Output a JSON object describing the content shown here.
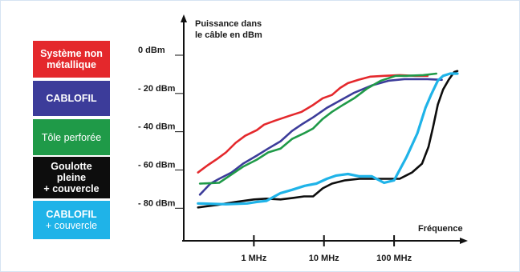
{
  "chart_data": {
    "type": "line",
    "title": "",
    "ylabel_line1": "Puissance dans",
    "ylabel_line2": "le câble en dBm",
    "xlabel": "Fréquence",
    "y_ticks": [
      {
        "value": 0,
        "label": "0 dBm"
      },
      {
        "value": -20,
        "label": "- 20 dBm"
      },
      {
        "value": -40,
        "label": "- 40 dBm"
      },
      {
        "value": -60,
        "label": "- 60 dBm"
      },
      {
        "value": -80,
        "label": "- 80 dBm"
      }
    ],
    "x_ticks": [
      {
        "value": 1,
        "label": "1 MHz"
      },
      {
        "value": 10,
        "label": "10 MHz"
      },
      {
        "value": 100,
        "label": "100 MHz"
      }
    ],
    "x_scale": "log",
    "xlim_mhz": [
      0.1,
      800
    ],
    "ylim": [
      -92,
      0
    ],
    "legend_placement": "left",
    "series": [
      {
        "name": "Système non métallique",
        "color": "#e4282c",
        "points": [
          [
            0.16,
            -61.3
          ],
          [
            0.22,
            -57.5
          ],
          [
            0.3,
            -54.2
          ],
          [
            0.4,
            -50.8
          ],
          [
            0.55,
            -45.8
          ],
          [
            0.75,
            -42.1
          ],
          [
            1.1,
            -39.2
          ],
          [
            1.4,
            -36.3
          ],
          [
            2,
            -34.2
          ],
          [
            3.2,
            -31.7
          ],
          [
            4.8,
            -29.6
          ],
          [
            6.8,
            -26.3
          ],
          [
            9.6,
            -22.5
          ],
          [
            13,
            -20.8
          ],
          [
            17,
            -17.1
          ],
          [
            22,
            -14.6
          ],
          [
            31,
            -12.9
          ],
          [
            46,
            -11.2
          ],
          [
            72,
            -10.8
          ],
          [
            120,
            -10.4
          ],
          [
            200,
            -10.8
          ],
          [
            300,
            -10.8
          ]
        ]
      },
      {
        "name": "CABLOFIL",
        "color": "#3c3c9a",
        "points": [
          [
            0.17,
            -72.9
          ],
          [
            0.24,
            -67.1
          ],
          [
            0.32,
            -64.6
          ],
          [
            0.48,
            -61.3
          ],
          [
            0.7,
            -56.7
          ],
          [
            1.1,
            -52.5
          ],
          [
            1.6,
            -48.8
          ],
          [
            2.4,
            -45
          ],
          [
            3.5,
            -39.6
          ],
          [
            5,
            -35.8
          ],
          [
            7,
            -32.5
          ],
          [
            11,
            -27.5
          ],
          [
            16,
            -24.2
          ],
          [
            27,
            -19.6
          ],
          [
            48,
            -15.8
          ],
          [
            85,
            -13.3
          ],
          [
            140,
            -12.5
          ],
          [
            300,
            -12.5
          ],
          [
            480,
            -12.9
          ]
        ]
      },
      {
        "name": "Tôle perforée",
        "color": "#1f9a48",
        "points": [
          [
            0.17,
            -67.1
          ],
          [
            0.32,
            -66.7
          ],
          [
            0.7,
            -58.3
          ],
          [
            1.1,
            -54.6
          ],
          [
            1.6,
            -50.8
          ],
          [
            2.4,
            -48.8
          ],
          [
            3.5,
            -43.8
          ],
          [
            5.2,
            -40.8
          ],
          [
            7,
            -38.3
          ],
          [
            9.6,
            -33.3
          ],
          [
            13,
            -29.6
          ],
          [
            19,
            -25.8
          ],
          [
            27,
            -22.5
          ],
          [
            41,
            -17.5
          ],
          [
            65,
            -13.3
          ],
          [
            105,
            -10.8
          ],
          [
            150,
            -10.8
          ],
          [
            260,
            -10.4
          ],
          [
            400,
            -9.6
          ]
        ]
      },
      {
        "name": "Goulotte pleine + couvercle",
        "color": "#0d0d0d",
        "points": [
          [
            0.16,
            -79.6
          ],
          [
            0.3,
            -78.3
          ],
          [
            0.55,
            -76.7
          ],
          [
            1,
            -75.4
          ],
          [
            1.5,
            -75
          ],
          [
            2.4,
            -75.4
          ],
          [
            3.6,
            -74.6
          ],
          [
            5.2,
            -73.8
          ],
          [
            7,
            -73.8
          ],
          [
            9.6,
            -69.6
          ],
          [
            13,
            -67.1
          ],
          [
            20,
            -65.4
          ],
          [
            32,
            -64.6
          ],
          [
            60,
            -64.6
          ],
          [
            120,
            -64.6
          ],
          [
            180,
            -61.3
          ],
          [
            250,
            -56.7
          ],
          [
            310,
            -47.9
          ],
          [
            360,
            -37.5
          ],
          [
            420,
            -25.8
          ],
          [
            500,
            -17.9
          ],
          [
            600,
            -12.9
          ],
          [
            720,
            -8.8
          ],
          [
            800,
            -8.3
          ]
        ]
      },
      {
        "name": "CABLOFIL + couvercle",
        "color": "#1fb3e8",
        "points": [
          [
            0.16,
            -77.5
          ],
          [
            0.4,
            -77.9
          ],
          [
            0.8,
            -77.5
          ],
          [
            1.1,
            -76.7
          ],
          [
            1.5,
            -76.2
          ],
          [
            2.4,
            -72.1
          ],
          [
            3.5,
            -70.4
          ],
          [
            5.3,
            -68.3
          ],
          [
            7.8,
            -67.1
          ],
          [
            11,
            -64.6
          ],
          [
            15,
            -62.9
          ],
          [
            22,
            -62.1
          ],
          [
            32,
            -63.3
          ],
          [
            48,
            -63.3
          ],
          [
            72,
            -66.7
          ],
          [
            100,
            -65.4
          ],
          [
            150,
            -53.3
          ],
          [
            215,
            -40.8
          ],
          [
            280,
            -27.5
          ],
          [
            340,
            -20.4
          ],
          [
            420,
            -13.3
          ],
          [
            500,
            -10.8
          ],
          [
            630,
            -9.6
          ],
          [
            800,
            -9.6
          ]
        ]
      }
    ]
  },
  "legend": [
    {
      "lines": [
        "Système non",
        "métallique"
      ],
      "color": "#e4282c"
    },
    {
      "lines": [
        "CABLOFIL"
      ],
      "color": "#3c3c9a"
    },
    {
      "lines": [
        "Tôle perforée"
      ],
      "color": "#1f9a48"
    },
    {
      "lines": [
        "Goulotte",
        "pleine",
        "+ couvercle"
      ],
      "color": "#0d0d0d"
    },
    {
      "lines": [
        "CABLOFIL",
        "+ couvercle"
      ],
      "color": "#1fb3e8"
    }
  ]
}
